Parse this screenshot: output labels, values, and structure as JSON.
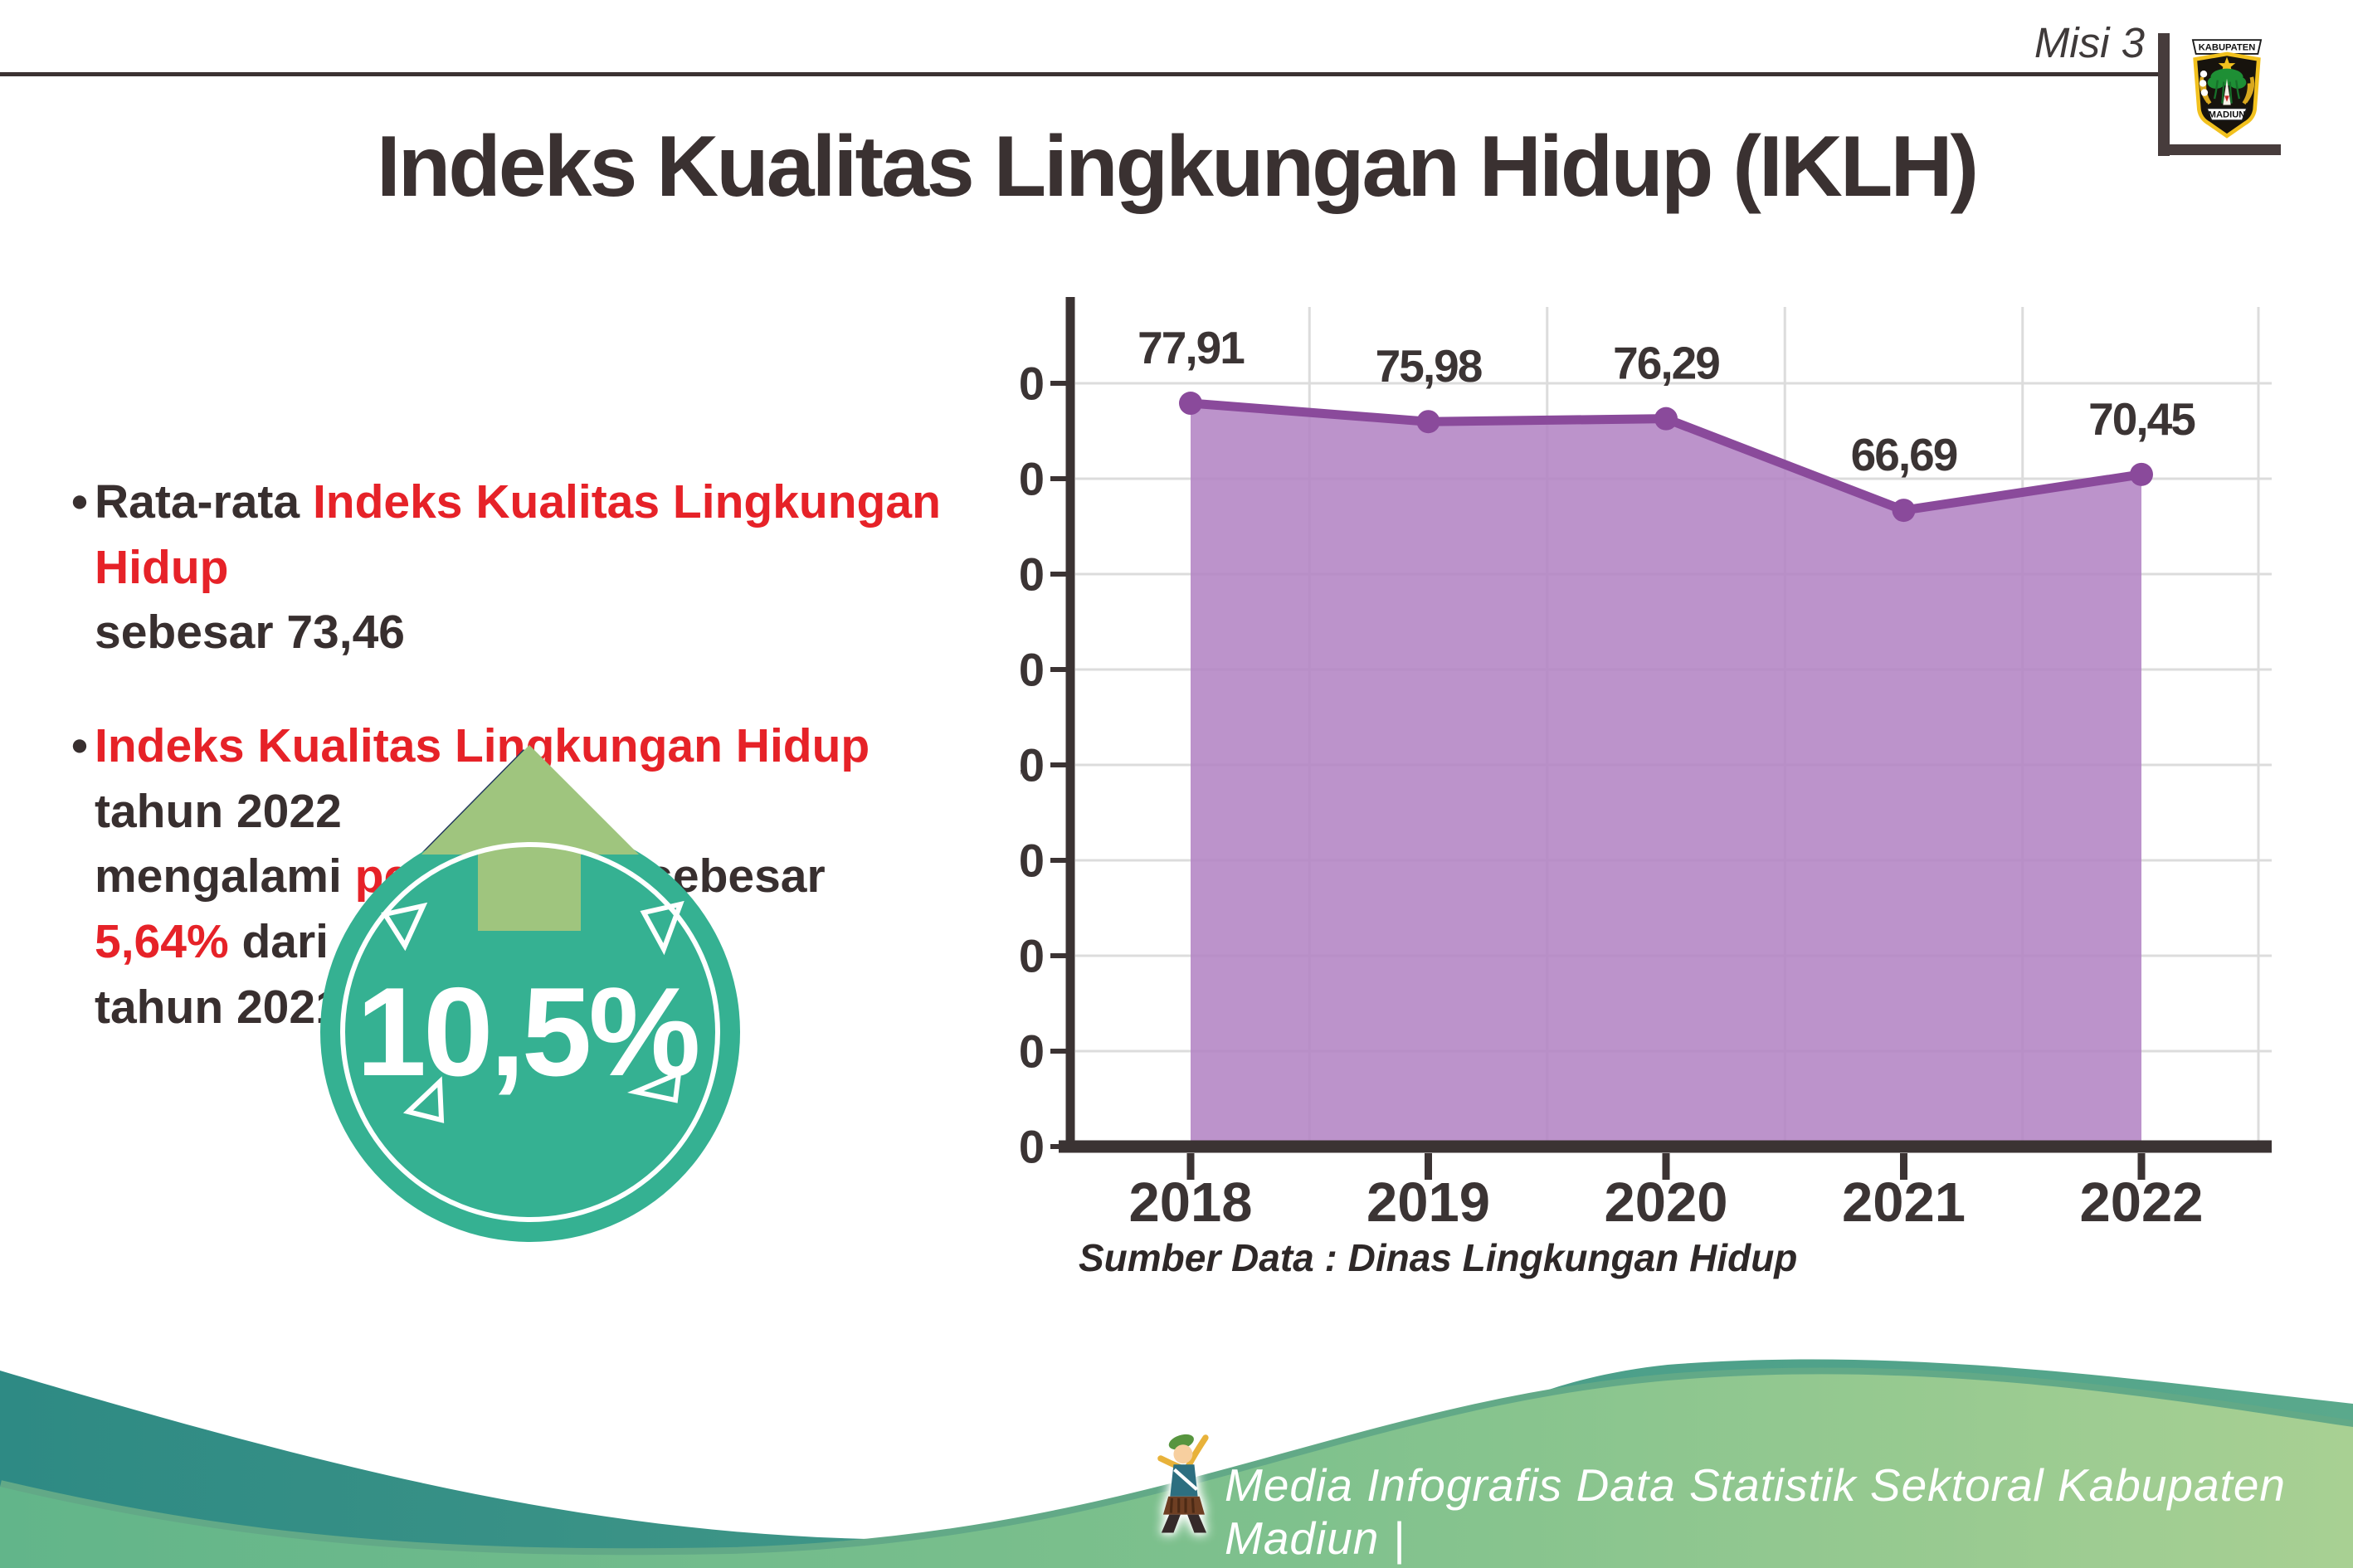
{
  "header": {
    "misi_label": "Misi 3"
  },
  "title": "Indeks Kualitas Lingkungan Hidup (IKLH)",
  "logo": {
    "top_text": "KABUPATEN",
    "bottom_text": "MADIUN"
  },
  "bullets": [
    {
      "lines": [
        [
          {
            "t": "Rata-rata ",
            "red": false
          },
          {
            "t": "Indeks Kualitas Lingkungan Hidup",
            "red": true
          }
        ],
        [
          {
            "t": "sebesar 73,46",
            "red": false
          }
        ]
      ]
    },
    {
      "lines": [
        [
          {
            "t": "Indeks Kualitas Lingkungan Hidup",
            "red": true
          },
          {
            "t": " tahun 2022",
            "red": false
          }
        ],
        [
          {
            "t": "mengalami ",
            "red": false
          },
          {
            "t": "peningkatan",
            "red": true
          },
          {
            "t": " sebesar ",
            "red": false
          },
          {
            "t": "5,64%",
            "red": true
          },
          {
            "t": " dari",
            "red": false
          }
        ],
        [
          {
            "t": "tahun 2021",
            "red": false
          }
        ]
      ]
    }
  ],
  "badge": {
    "value": "10,5%",
    "circle_color": "#35b192",
    "arrow_color": "#9fc57e",
    "arrow_outline": "#23395f"
  },
  "chart_data": {
    "type": "area",
    "categories": [
      "2018",
      "2019",
      "2020",
      "2021",
      "2022"
    ],
    "values": [
      77.91,
      75.98,
      76.29,
      66.69,
      70.45
    ],
    "value_labels": [
      "77,91",
      "75,98",
      "76,29",
      "66,69",
      "70,45"
    ],
    "title": "",
    "xlabel": "",
    "ylabel": "",
    "ylim": [
      0,
      85
    ],
    "yticks": [
      0,
      10,
      20,
      30,
      40,
      50,
      60,
      70,
      80
    ],
    "grid": true,
    "legend": false,
    "source_note": "Sumber Data : Dinas Lingkungan Hidup",
    "line_color": "#8a4a9b",
    "fill_color": "#b283c3",
    "grid_color": "#dcdcdc",
    "axis_color": "#3b3333",
    "label_color": "#3b3434"
  },
  "footer": {
    "text": "Media Infografis Data Statistik Sektoral Kabupaten Madiun |"
  },
  "colors": {
    "accent_red": "#e62228",
    "dark_text": "#382f2f",
    "teal_wave_left": "#2e8a84",
    "teal_wave_right": "#5aa98c",
    "green_wave_left": "#62b58a",
    "green_wave_right": "#a8d093",
    "wave_edge_band": "#62a987"
  }
}
